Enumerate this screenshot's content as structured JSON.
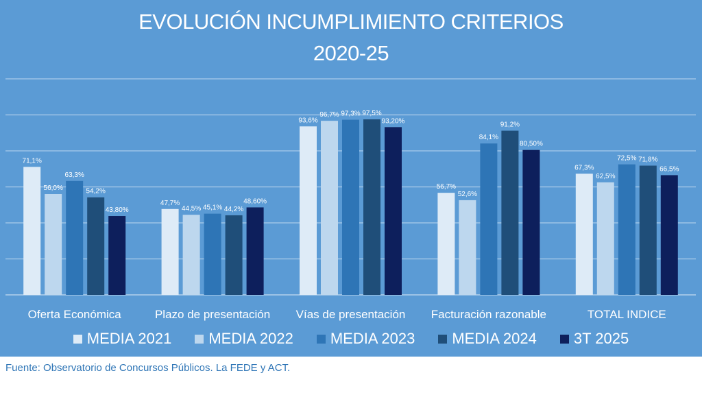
{
  "chart_data": {
    "type": "bar",
    "title": "EVOLUCIÓN INCUMPLIMIENTO CRITERIOS",
    "subtitle": "2020-25",
    "xlabel": "",
    "ylabel": "",
    "ylim": [
      0,
      120
    ],
    "grid": true,
    "legend_position": "bottom",
    "categories": [
      "Oferta Económica",
      "Plazo de presentación",
      "Vías de presentación",
      "Facturación razonable",
      "TOTAL INDICE"
    ],
    "series": [
      {
        "name": "MEDIA 2021",
        "color": "#deebf7",
        "values": [
          71.1,
          47.7,
          93.6,
          56.7,
          67.3
        ],
        "labels": [
          "71,1%",
          "47,7%",
          "93,6%",
          "56,7%",
          "67,3%"
        ]
      },
      {
        "name": "MEDIA 2022",
        "color": "#bdd7ee",
        "values": [
          56.0,
          44.5,
          96.7,
          52.6,
          62.5
        ],
        "labels": [
          "56,0%",
          "44,5%",
          "96,7%",
          "52,6%",
          "62,5%"
        ]
      },
      {
        "name": "MEDIA 2023",
        "color": "#2e75b6",
        "values": [
          63.3,
          45.1,
          97.3,
          84.1,
          72.5
        ],
        "labels": [
          "63,3%",
          "45,1%",
          "97,3%",
          "84,1%",
          "72,5%"
        ]
      },
      {
        "name": "MEDIA 2024",
        "color": "#1f4e79",
        "values": [
          54.2,
          44.2,
          97.5,
          91.2,
          71.8
        ],
        "labels": [
          "54,2%",
          "44,2%",
          "97,5%",
          "91,2%",
          "71,8%"
        ]
      },
      {
        "name": "3T 2025",
        "color": "#0d1f5c",
        "values": [
          43.8,
          48.6,
          93.2,
          80.5,
          66.5
        ],
        "labels": [
          "43,80%",
          "48,60%",
          "93,20%",
          "80,50%",
          "66,5%"
        ]
      }
    ]
  },
  "source": "Fuente: Observatorio de Concursos Públicos. La FEDE y ACT.",
  "colors": {
    "background": "#5b9bd5",
    "gridline": "#9dc3e6",
    "text": "#ffffff",
    "source_text": "#2e75b6"
  }
}
